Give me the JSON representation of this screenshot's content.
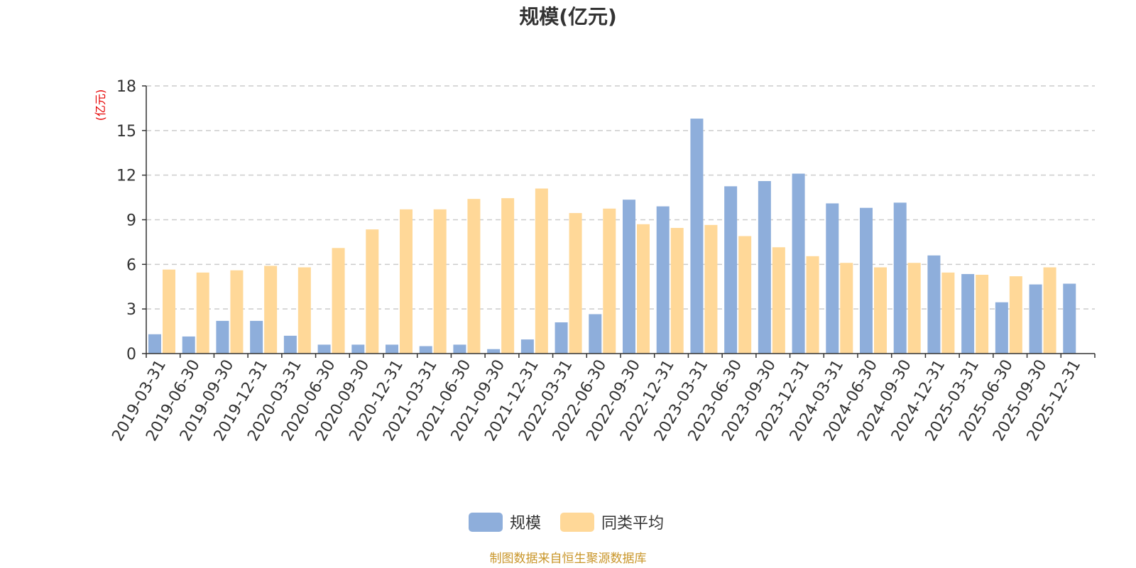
{
  "chart_data": {
    "type": "bar",
    "title": "规模(亿元)",
    "ylabel": "(亿元)",
    "ylim": [
      0,
      18
    ],
    "yticks": [
      0,
      3,
      6,
      9,
      12,
      15,
      18
    ],
    "grid": true,
    "legend_position": "bottom",
    "categories": [
      "2019-03-31",
      "2019-06-30",
      "2019-09-30",
      "2019-12-31",
      "2020-03-31",
      "2020-06-30",
      "2020-09-30",
      "2020-12-31",
      "2021-03-31",
      "2021-06-30",
      "2021-09-30",
      "2021-12-31",
      "2022-03-31",
      "2022-06-30",
      "2022-09-30",
      "2022-12-31",
      "2023-03-31",
      "2023-06-30",
      "2023-09-30",
      "2023-12-31",
      "2024-03-31",
      "2024-06-30",
      "2024-09-30",
      "2024-12-31",
      "2025-03-31",
      "2025-06-30",
      "2025-09-30",
      "2025-12-31"
    ],
    "series": [
      {
        "name": "规模",
        "color": "#8eaedb",
        "values": [
          1.3,
          1.15,
          2.2,
          2.2,
          1.2,
          0.6,
          0.6,
          0.6,
          0.5,
          0.6,
          0.3,
          0.95,
          2.1,
          2.65,
          10.35,
          9.9,
          15.8,
          11.25,
          11.6,
          12.1,
          10.1,
          9.8,
          10.15,
          6.6,
          5.35,
          3.45,
          4.65,
          4.7
        ]
      },
      {
        "name": "同类平均",
        "color": "#ffd898",
        "values": [
          5.65,
          5.45,
          5.6,
          5.9,
          5.8,
          7.1,
          8.35,
          9.7,
          9.7,
          10.4,
          10.45,
          11.1,
          9.45,
          9.75,
          8.7,
          8.45,
          8.65,
          7.9,
          7.15,
          6.55,
          6.1,
          5.8,
          6.1,
          5.45,
          5.3,
          5.2,
          5.8,
          null
        ]
      }
    ]
  },
  "source_note": "制图数据来自恒生聚源数据库"
}
